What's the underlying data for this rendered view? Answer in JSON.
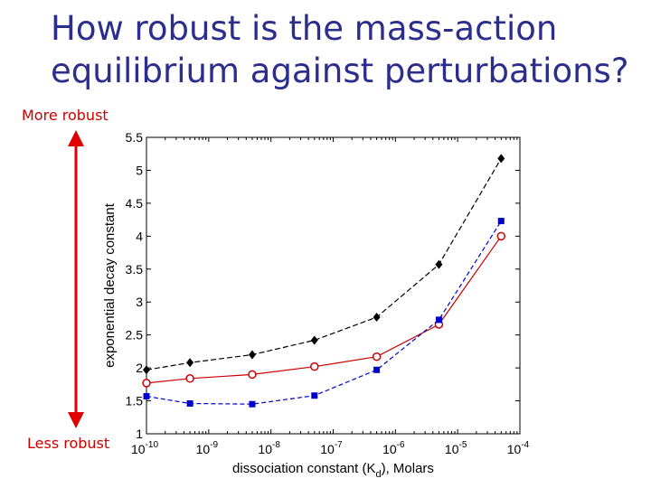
{
  "slide": {
    "title_line1": "How robust is the mass-action",
    "title_line2": "equilibrium against perturbations?",
    "more_robust": "More robust",
    "less_robust": "Less robust",
    "arrow_color": "#e00000",
    "title_color": "#2b2e8c"
  },
  "chart_data": {
    "type": "line",
    "xscale": "log",
    "xlabel_main": "dissociation constant (K",
    "xlabel_sub": "d",
    "xlabel_tail": "), Molars",
    "ylabel": "exponential decay constant",
    "xlim": [
      1e-10,
      0.0001
    ],
    "ylim": [
      1,
      5.5
    ],
    "x_tick_exponents": [
      "-10",
      "-9",
      "-8",
      "-7",
      "-6",
      "-5",
      "-4"
    ],
    "y_ticks": [
      "1",
      "1.5",
      "2",
      "2.5",
      "3",
      "3.5",
      "4",
      "4.5",
      "5",
      "5.5"
    ],
    "x": [
      1e-10,
      5e-10,
      5e-09,
      5e-08,
      5e-07,
      5e-06,
      5e-05
    ],
    "series": [
      {
        "marker": "diamond",
        "color": "#000000",
        "dash": "6,3",
        "values": [
          1.97,
          2.08,
          2.2,
          2.42,
          2.77,
          3.57,
          5.18
        ]
      },
      {
        "marker": "circle",
        "color": "#cc0000",
        "dash": "",
        "values": [
          1.77,
          1.84,
          1.9,
          2.02,
          2.17,
          2.66,
          4.0
        ]
      },
      {
        "marker": "square",
        "color": "#0000cc",
        "dash": "5,3",
        "values": [
          1.57,
          1.46,
          1.45,
          1.58,
          1.97,
          2.73,
          4.23
        ]
      }
    ]
  }
}
